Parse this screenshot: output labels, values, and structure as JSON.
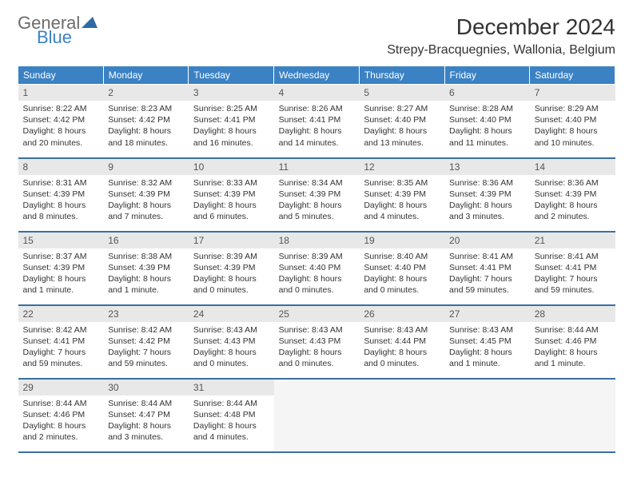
{
  "logo": {
    "part1": "General",
    "part2": "Blue"
  },
  "header": {
    "month_title": "December 2024",
    "location": "Strepy-Bracquegnies, Wallonia, Belgium"
  },
  "colors": {
    "header_bg": "#3b82c4",
    "header_text": "#ffffff",
    "row_border": "#3b6fa0",
    "daynum_bg": "#e8e8e8",
    "text": "#333333",
    "logo_gray": "#6b6b6b",
    "logo_blue": "#3b82c4"
  },
  "weekdays": [
    "Sunday",
    "Monday",
    "Tuesday",
    "Wednesday",
    "Thursday",
    "Friday",
    "Saturday"
  ],
  "days": [
    {
      "n": "1",
      "sunrise": "Sunrise: 8:22 AM",
      "sunset": "Sunset: 4:42 PM",
      "daylight": "Daylight: 8 hours and 20 minutes."
    },
    {
      "n": "2",
      "sunrise": "Sunrise: 8:23 AM",
      "sunset": "Sunset: 4:42 PM",
      "daylight": "Daylight: 8 hours and 18 minutes."
    },
    {
      "n": "3",
      "sunrise": "Sunrise: 8:25 AM",
      "sunset": "Sunset: 4:41 PM",
      "daylight": "Daylight: 8 hours and 16 minutes."
    },
    {
      "n": "4",
      "sunrise": "Sunrise: 8:26 AM",
      "sunset": "Sunset: 4:41 PM",
      "daylight": "Daylight: 8 hours and 14 minutes."
    },
    {
      "n": "5",
      "sunrise": "Sunrise: 8:27 AM",
      "sunset": "Sunset: 4:40 PM",
      "daylight": "Daylight: 8 hours and 13 minutes."
    },
    {
      "n": "6",
      "sunrise": "Sunrise: 8:28 AM",
      "sunset": "Sunset: 4:40 PM",
      "daylight": "Daylight: 8 hours and 11 minutes."
    },
    {
      "n": "7",
      "sunrise": "Sunrise: 8:29 AM",
      "sunset": "Sunset: 4:40 PM",
      "daylight": "Daylight: 8 hours and 10 minutes."
    },
    {
      "n": "8",
      "sunrise": "Sunrise: 8:31 AM",
      "sunset": "Sunset: 4:39 PM",
      "daylight": "Daylight: 8 hours and 8 minutes."
    },
    {
      "n": "9",
      "sunrise": "Sunrise: 8:32 AM",
      "sunset": "Sunset: 4:39 PM",
      "daylight": "Daylight: 8 hours and 7 minutes."
    },
    {
      "n": "10",
      "sunrise": "Sunrise: 8:33 AM",
      "sunset": "Sunset: 4:39 PM",
      "daylight": "Daylight: 8 hours and 6 minutes."
    },
    {
      "n": "11",
      "sunrise": "Sunrise: 8:34 AM",
      "sunset": "Sunset: 4:39 PM",
      "daylight": "Daylight: 8 hours and 5 minutes."
    },
    {
      "n": "12",
      "sunrise": "Sunrise: 8:35 AM",
      "sunset": "Sunset: 4:39 PM",
      "daylight": "Daylight: 8 hours and 4 minutes."
    },
    {
      "n": "13",
      "sunrise": "Sunrise: 8:36 AM",
      "sunset": "Sunset: 4:39 PM",
      "daylight": "Daylight: 8 hours and 3 minutes."
    },
    {
      "n": "14",
      "sunrise": "Sunrise: 8:36 AM",
      "sunset": "Sunset: 4:39 PM",
      "daylight": "Daylight: 8 hours and 2 minutes."
    },
    {
      "n": "15",
      "sunrise": "Sunrise: 8:37 AM",
      "sunset": "Sunset: 4:39 PM",
      "daylight": "Daylight: 8 hours and 1 minute."
    },
    {
      "n": "16",
      "sunrise": "Sunrise: 8:38 AM",
      "sunset": "Sunset: 4:39 PM",
      "daylight": "Daylight: 8 hours and 1 minute."
    },
    {
      "n": "17",
      "sunrise": "Sunrise: 8:39 AM",
      "sunset": "Sunset: 4:39 PM",
      "daylight": "Daylight: 8 hours and 0 minutes."
    },
    {
      "n": "18",
      "sunrise": "Sunrise: 8:39 AM",
      "sunset": "Sunset: 4:40 PM",
      "daylight": "Daylight: 8 hours and 0 minutes."
    },
    {
      "n": "19",
      "sunrise": "Sunrise: 8:40 AM",
      "sunset": "Sunset: 4:40 PM",
      "daylight": "Daylight: 8 hours and 0 minutes."
    },
    {
      "n": "20",
      "sunrise": "Sunrise: 8:41 AM",
      "sunset": "Sunset: 4:41 PM",
      "daylight": "Daylight: 7 hours and 59 minutes."
    },
    {
      "n": "21",
      "sunrise": "Sunrise: 8:41 AM",
      "sunset": "Sunset: 4:41 PM",
      "daylight": "Daylight: 7 hours and 59 minutes."
    },
    {
      "n": "22",
      "sunrise": "Sunrise: 8:42 AM",
      "sunset": "Sunset: 4:41 PM",
      "daylight": "Daylight: 7 hours and 59 minutes."
    },
    {
      "n": "23",
      "sunrise": "Sunrise: 8:42 AM",
      "sunset": "Sunset: 4:42 PM",
      "daylight": "Daylight: 7 hours and 59 minutes."
    },
    {
      "n": "24",
      "sunrise": "Sunrise: 8:43 AM",
      "sunset": "Sunset: 4:43 PM",
      "daylight": "Daylight: 8 hours and 0 minutes."
    },
    {
      "n": "25",
      "sunrise": "Sunrise: 8:43 AM",
      "sunset": "Sunset: 4:43 PM",
      "daylight": "Daylight: 8 hours and 0 minutes."
    },
    {
      "n": "26",
      "sunrise": "Sunrise: 8:43 AM",
      "sunset": "Sunset: 4:44 PM",
      "daylight": "Daylight: 8 hours and 0 minutes."
    },
    {
      "n": "27",
      "sunrise": "Sunrise: 8:43 AM",
      "sunset": "Sunset: 4:45 PM",
      "daylight": "Daylight: 8 hours and 1 minute."
    },
    {
      "n": "28",
      "sunrise": "Sunrise: 8:44 AM",
      "sunset": "Sunset: 4:46 PM",
      "daylight": "Daylight: 8 hours and 1 minute."
    },
    {
      "n": "29",
      "sunrise": "Sunrise: 8:44 AM",
      "sunset": "Sunset: 4:46 PM",
      "daylight": "Daylight: 8 hours and 2 minutes."
    },
    {
      "n": "30",
      "sunrise": "Sunrise: 8:44 AM",
      "sunset": "Sunset: 4:47 PM",
      "daylight": "Daylight: 8 hours and 3 minutes."
    },
    {
      "n": "31",
      "sunrise": "Sunrise: 8:44 AM",
      "sunset": "Sunset: 4:48 PM",
      "daylight": "Daylight: 8 hours and 4 minutes."
    }
  ]
}
